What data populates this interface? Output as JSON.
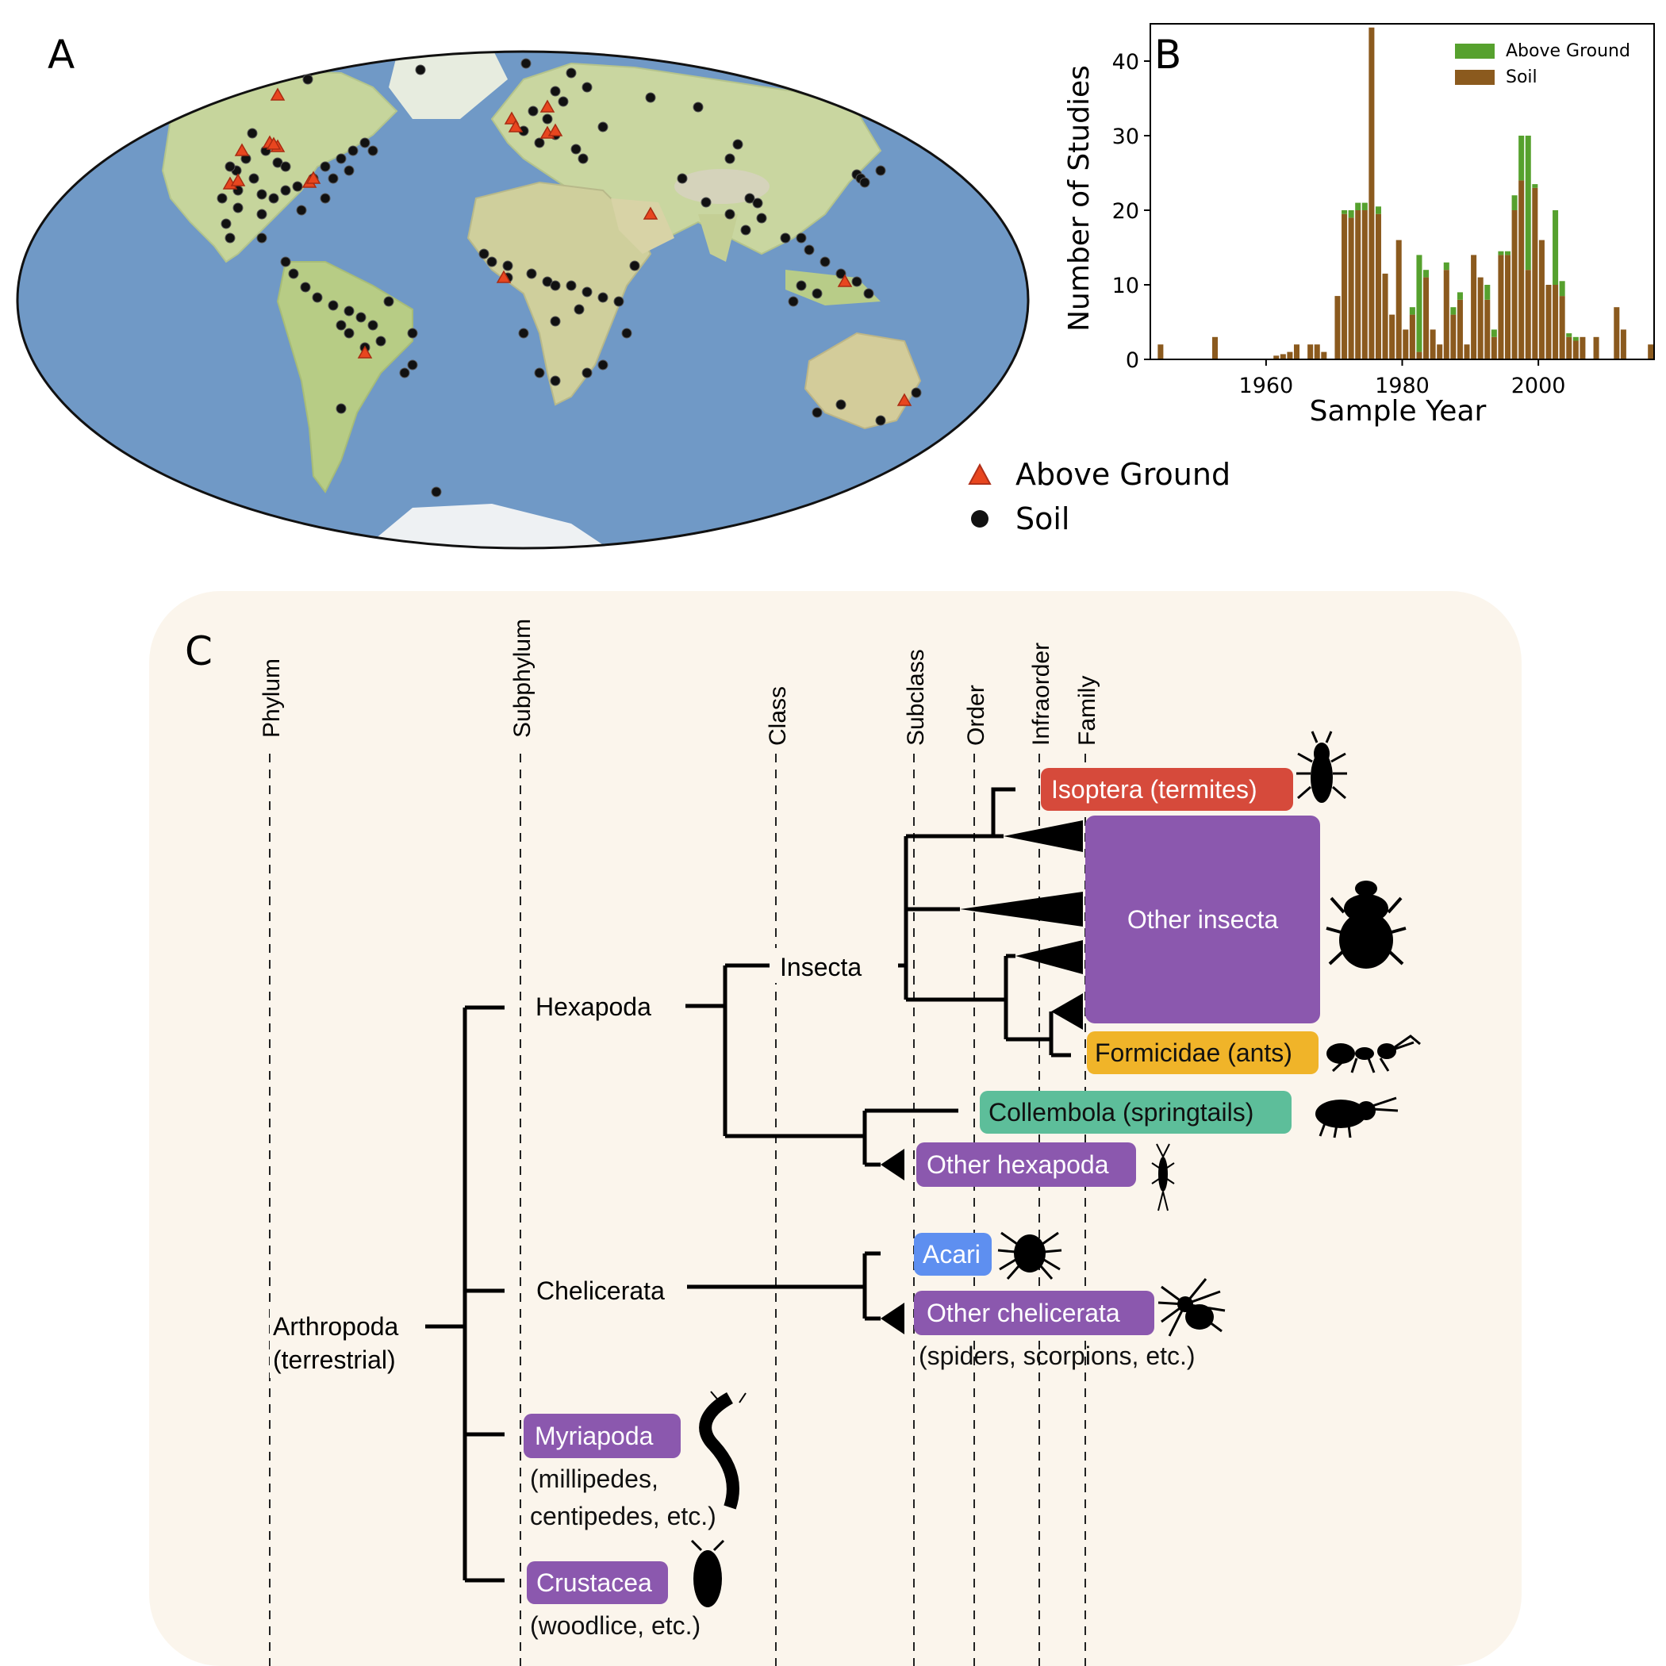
{
  "panels": {
    "a": "A",
    "b": "B",
    "c": "C"
  },
  "map": {
    "legend": {
      "above_ground": "Above Ground",
      "soil": "Soil"
    },
    "colors": {
      "ocean": "#6e96c4",
      "land": "#c9d6a0",
      "soil_marker": "#111111",
      "above_marker": "#e8461f"
    }
  },
  "chart_data": {
    "type": "bar",
    "stacked": true,
    "xlabel": "Sample Year",
    "ylabel": "Number of Studies",
    "xlim": [
      1943,
      2017
    ],
    "ylim": [
      0,
      45
    ],
    "xticks": [
      1960,
      1980,
      2000
    ],
    "yticks": [
      0,
      10,
      20,
      30,
      40
    ],
    "legend_position": "top-right",
    "grid": false,
    "series": [
      {
        "name": "Soil",
        "color": "#8b5a1e",
        "years": [
          1944,
          1952,
          1961,
          1962,
          1963,
          1964,
          1966,
          1967,
          1968,
          1970,
          1971,
          1972,
          1973,
          1974,
          1975,
          1976,
          1977,
          1978,
          1979,
          1980,
          1981,
          1982,
          1983,
          1984,
          1985,
          1986,
          1987,
          1988,
          1989,
          1990,
          1991,
          1992,
          1993,
          1994,
          1995,
          1996,
          1997,
          1998,
          1999,
          2000,
          2001,
          2002,
          2003,
          2004,
          2005,
          2006,
          2008,
          2011,
          2012,
          2016
        ],
        "values": [
          2,
          3,
          0.5,
          0.7,
          1,
          2,
          2,
          2,
          1,
          8.5,
          19.5,
          19,
          20,
          20,
          44.5,
          19.5,
          11.5,
          6,
          16,
          4,
          6,
          1,
          11,
          4,
          2,
          12,
          6,
          8,
          2,
          14,
          11,
          8,
          3,
          14,
          14,
          20,
          24,
          12,
          23,
          16,
          10,
          10,
          8.5,
          3,
          2.5,
          3,
          3,
          7,
          4,
          2
        ]
      },
      {
        "name": "Above Ground",
        "color": "#56a12e",
        "years": [
          1944,
          1952,
          1961,
          1962,
          1963,
          1964,
          1966,
          1967,
          1968,
          1970,
          1971,
          1972,
          1973,
          1974,
          1975,
          1976,
          1977,
          1978,
          1979,
          1980,
          1981,
          1982,
          1983,
          1984,
          1985,
          1986,
          1987,
          1988,
          1989,
          1990,
          1991,
          1992,
          1993,
          1994,
          1995,
          1996,
          1997,
          1998,
          1999,
          2000,
          2001,
          2002,
          2003,
          2004,
          2005,
          2006,
          2008,
          2011,
          2012,
          2016
        ],
        "values": [
          0,
          0,
          0,
          0,
          0,
          0,
          0,
          0,
          0,
          0,
          0.5,
          1,
          1,
          1,
          0,
          1,
          0,
          0,
          0,
          0,
          1,
          13,
          1,
          0,
          0,
          1,
          1,
          1,
          0,
          0,
          0,
          2,
          1,
          0.5,
          0.5,
          2,
          6,
          18,
          0.5,
          0,
          0,
          10,
          2,
          0.5,
          0.5,
          0,
          0,
          0,
          0,
          0
        ]
      }
    ]
  },
  "tree": {
    "ranks": [
      "Phylum",
      "Subphylum",
      "Class",
      "Subclass",
      "Order",
      "Infraorder",
      "Family"
    ],
    "nodes": {
      "arthropoda_1": "Arthropoda",
      "arthropoda_2": "(terrestrial)",
      "hexapoda": "Hexapoda",
      "insecta": "Insecta",
      "chelicerata": "Chelicerata"
    },
    "leaves": {
      "isoptera": "Isoptera (termites)",
      "other_insecta": "Other insecta",
      "formicidae": "Formicidae (ants)",
      "collembola": "Collembola (springtails)",
      "other_hexapoda": "Other hexapoda",
      "acari": "Acari",
      "other_chelicerata": "Other chelicerata",
      "other_chelicerata_note": "(spiders, scorpions, etc.)",
      "myriapoda": "Myriapoda",
      "myriapoda_note_1": "(millipedes,",
      "myriapoda_note_2": "centipedes, etc.)",
      "crustacea": "Crustacea",
      "crustacea_note": "(woodlice, etc.)"
    },
    "colors": {
      "background": "#fbf5ec",
      "isoptera": "#d64a3b",
      "purple": "#8b58ae",
      "formicidae": "#f0b429",
      "collembola": "#5dbe9a",
      "acari": "#5e8ff0"
    }
  }
}
